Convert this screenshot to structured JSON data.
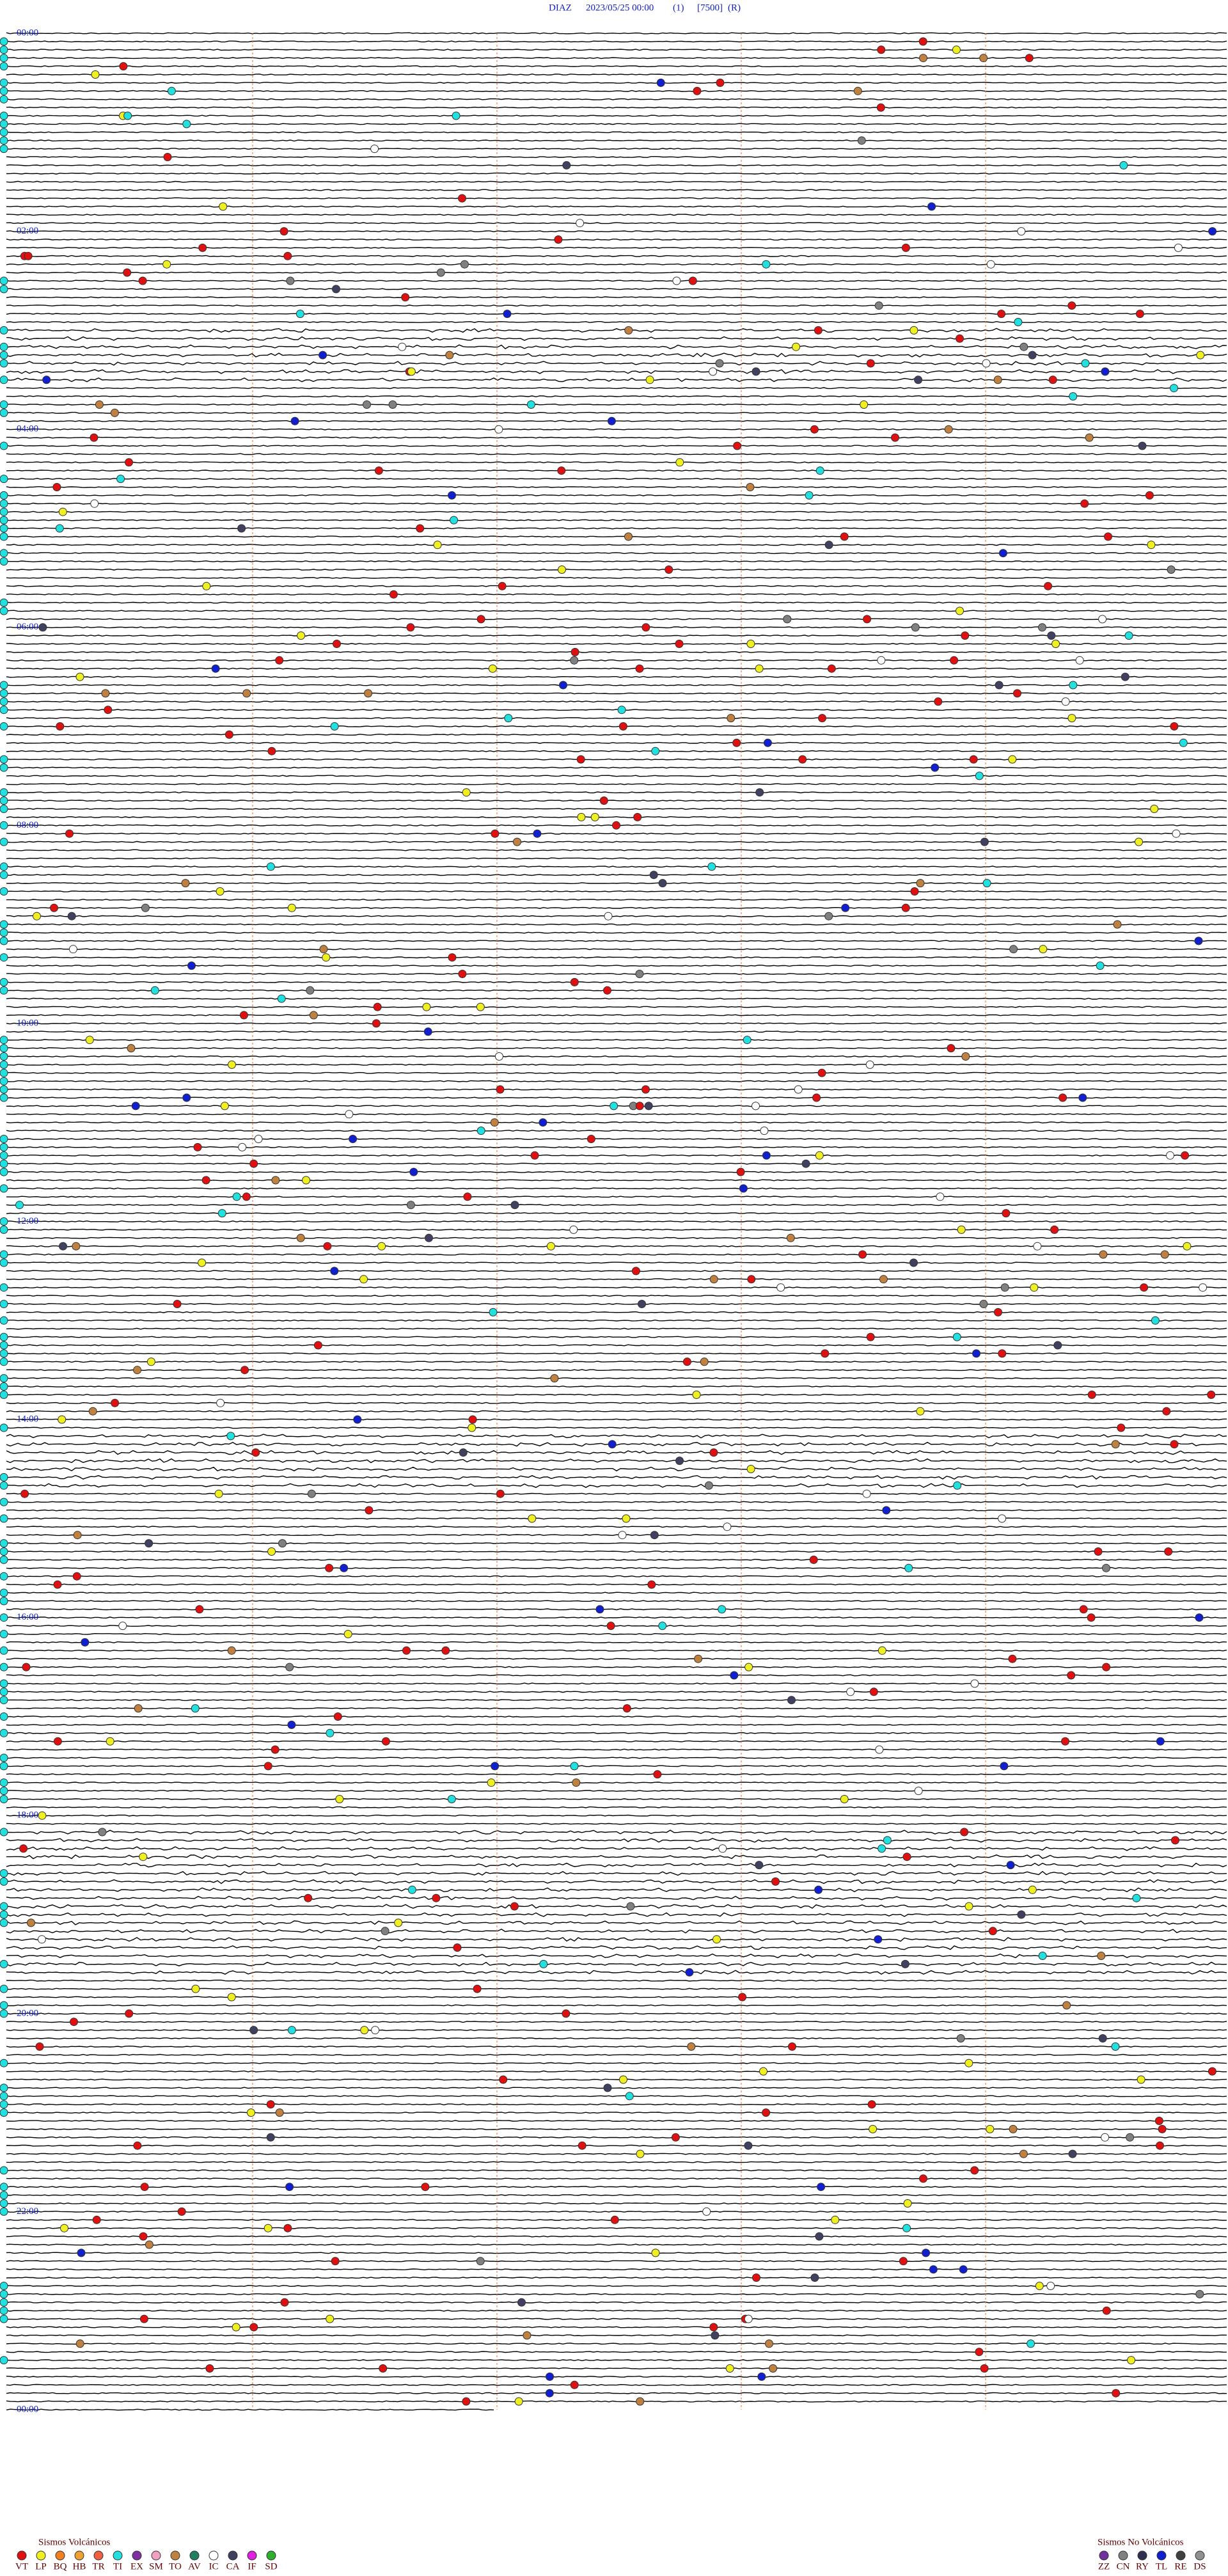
{
  "header": {
    "station": "DIAZ",
    "datetime": "2023/05/25 00:00",
    "channel": "(1)",
    "scale": "[7500]",
    "mode": "(R)"
  },
  "hour_labels": [
    "00:00",
    "02:00",
    "04:00",
    "06:00",
    "08:00",
    "10:00",
    "12:00",
    "14:00",
    "16:00",
    "18:00",
    "20:00",
    "22:00",
    "00:00"
  ],
  "legend": {
    "volcanic": {
      "title": "Sismos Volcánicos",
      "items": [
        {
          "code": "VT",
          "color": "#e01010"
        },
        {
          "code": "LP",
          "color": "#f0f020"
        },
        {
          "code": "BQ",
          "color": "#f08020"
        },
        {
          "code": "HB",
          "color": "#f0a030"
        },
        {
          "code": "TR",
          "color": "#f06040"
        },
        {
          "code": "TI",
          "color": "#20e0e0"
        },
        {
          "code": "EX",
          "color": "#8030a0"
        },
        {
          "code": "SM",
          "color": "#f0a0c0"
        },
        {
          "code": "TO",
          "color": "#c08040"
        },
        {
          "code": "AV",
          "color": "#208060"
        },
        {
          "code": "IC",
          "color": "#ffffff"
        },
        {
          "code": "CA",
          "color": "#404060"
        },
        {
          "code": "IF",
          "color": "#e020e0"
        },
        {
          "code": "SD",
          "color": "#30b030"
        }
      ]
    },
    "non_volcanic": {
      "title": "Sismos No Volcánicos",
      "items": [
        {
          "code": "ZZ",
          "color": "#7030a0"
        },
        {
          "code": "CN",
          "color": "#808080"
        },
        {
          "code": "RY",
          "color": "#303050"
        },
        {
          "code": "TL",
          "color": "#1020d0"
        },
        {
          "code": "RE",
          "color": "#404040"
        },
        {
          "code": "DS",
          "color": "#909090"
        }
      ]
    }
  }
}
